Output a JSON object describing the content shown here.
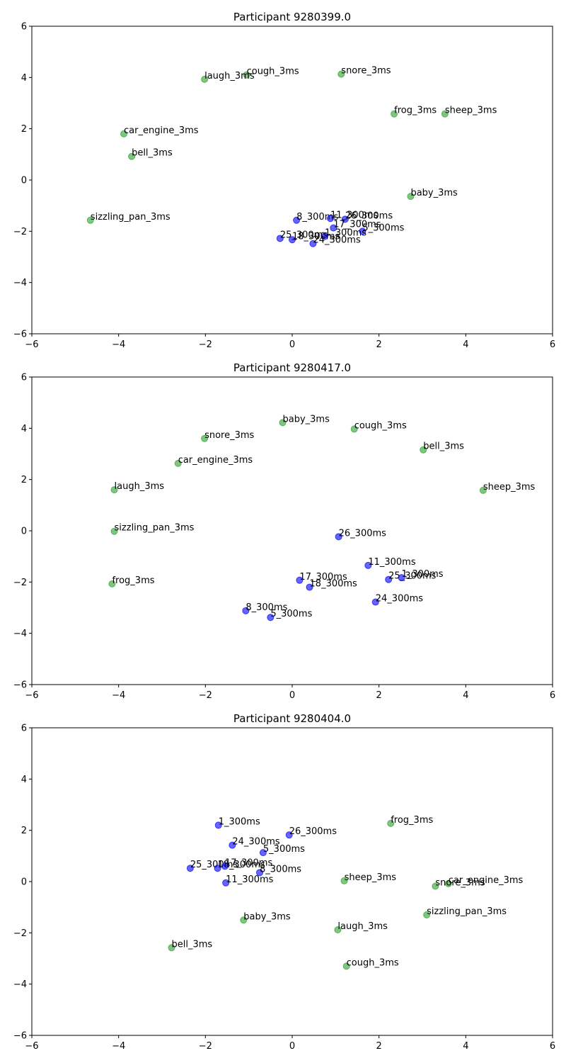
{
  "chart_data": [
    {
      "type": "scatter",
      "title": "Participant 9280399.0",
      "xlim": [
        -6,
        6
      ],
      "ylim": [
        -6,
        6
      ],
      "xticks": [
        "−6",
        "−4",
        "−2",
        "0",
        "2",
        "4",
        "6"
      ],
      "yticks": [
        "−6",
        "−4",
        "−2",
        "0",
        "2",
        "4",
        "6"
      ],
      "grid": false,
      "series": [
        {
          "color": "#2ca02c",
          "points": [
            {
              "label": "cough_3ms",
              "x": -1.05,
              "y": 4.1
            },
            {
              "label": "snore_3ms",
              "x": 1.13,
              "y": 4.13
            },
            {
              "label": "laugh_3ms",
              "x": -2.02,
              "y": 3.93
            },
            {
              "label": "frog_3ms",
              "x": 2.35,
              "y": 2.58
            },
            {
              "label": "sheep_3ms",
              "x": 3.52,
              "y": 2.58
            },
            {
              "label": "car_engine_3ms",
              "x": -3.88,
              "y": 1.8
            },
            {
              "label": "bell_3ms",
              "x": -3.7,
              "y": 0.92
            },
            {
              "label": "baby_3ms",
              "x": 2.73,
              "y": -0.64
            },
            {
              "label": "sizzling_pan_3ms",
              "x": -4.65,
              "y": -1.57
            }
          ]
        },
        {
          "color": "#0000ff",
          "points": [
            {
              "label": "8_300ms",
              "x": 0.1,
              "y": -1.57
            },
            {
              "label": "11_300ms",
              "x": 0.88,
              "y": -1.5
            },
            {
              "label": "26_300ms",
              "x": 1.22,
              "y": -1.53
            },
            {
              "label": "17_300ms",
              "x": 0.95,
              "y": -1.87
            },
            {
              "label": "5_300ms",
              "x": 1.62,
              "y": -2.0
            },
            {
              "label": "25_300ms",
              "x": -0.28,
              "y": -2.28
            },
            {
              "label": "18_300ms",
              "x": 0.0,
              "y": -2.33
            },
            {
              "label": "1_300ms",
              "x": 0.75,
              "y": -2.2
            },
            {
              "label": "24_300ms",
              "x": 0.48,
              "y": -2.48
            }
          ]
        }
      ]
    },
    {
      "type": "scatter",
      "title": "Participant 9280417.0",
      "xlim": [
        -6,
        6
      ],
      "ylim": [
        -6,
        6
      ],
      "xticks": [
        "−6",
        "−4",
        "−2",
        "0",
        "2",
        "4",
        "6"
      ],
      "yticks": [
        "−6",
        "−4",
        "−2",
        "0",
        "2",
        "4",
        "6"
      ],
      "grid": false,
      "series": [
        {
          "color": "#2ca02c",
          "points": [
            {
              "label": "baby_3ms",
              "x": -0.22,
              "y": 4.22
            },
            {
              "label": "cough_3ms",
              "x": 1.43,
              "y": 3.97
            },
            {
              "label": "snore_3ms",
              "x": -2.02,
              "y": 3.6
            },
            {
              "label": "bell_3ms",
              "x": 3.02,
              "y": 3.16
            },
            {
              "label": "car_engine_3ms",
              "x": -2.63,
              "y": 2.63
            },
            {
              "label": "laugh_3ms",
              "x": -4.1,
              "y": 1.6
            },
            {
              "label": "sheep_3ms",
              "x": 4.4,
              "y": 1.58
            },
            {
              "label": "sizzling_pan_3ms",
              "x": -4.1,
              "y": -0.02
            },
            {
              "label": "frog_3ms",
              "x": -4.15,
              "y": -2.07
            }
          ]
        },
        {
          "color": "#0000ff",
          "points": [
            {
              "label": "26_300ms",
              "x": 1.07,
              "y": -0.23
            },
            {
              "label": "11_300ms",
              "x": 1.75,
              "y": -1.35
            },
            {
              "label": "25_300ms",
              "x": 2.22,
              "y": -1.9
            },
            {
              "label": "1_300ms",
              "x": 2.52,
              "y": -1.83
            },
            {
              "label": "17_300ms",
              "x": 0.17,
              "y": -1.93
            },
            {
              "label": "18_300ms",
              "x": 0.4,
              "y": -2.2
            },
            {
              "label": "24_300ms",
              "x": 1.92,
              "y": -2.78
            },
            {
              "label": "8_300ms",
              "x": -1.07,
              "y": -3.12
            },
            {
              "label": "5_300ms",
              "x": -0.5,
              "y": -3.38
            }
          ]
        }
      ]
    },
    {
      "type": "scatter",
      "title": "Participant 9280404.0",
      "xlim": [
        -6,
        6
      ],
      "ylim": [
        -6,
        6
      ],
      "xticks": [
        "−6",
        "−4",
        "−2",
        "0",
        "2",
        "4",
        "6"
      ],
      "yticks": [
        "−6",
        "−4",
        "−2",
        "0",
        "2",
        "4",
        "6"
      ],
      "grid": false,
      "series": [
        {
          "color": "#2ca02c",
          "points": [
            {
              "label": "frog_3ms",
              "x": 2.27,
              "y": 2.27
            },
            {
              "label": "sheep_3ms",
              "x": 1.2,
              "y": 0.03
            },
            {
              "label": "car_engine_3ms",
              "x": 3.6,
              "y": -0.08
            },
            {
              "label": "snore_3ms",
              "x": 3.3,
              "y": -0.18
            },
            {
              "label": "sizzling_pan_3ms",
              "x": 3.1,
              "y": -1.3
            },
            {
              "label": "baby_3ms",
              "x": -1.12,
              "y": -1.5
            },
            {
              "label": "laugh_3ms",
              "x": 1.05,
              "y": -1.88
            },
            {
              "label": "bell_3ms",
              "x": -2.78,
              "y": -2.58
            },
            {
              "label": "cough_3ms",
              "x": 1.25,
              "y": -3.3
            }
          ]
        },
        {
          "color": "#0000ff",
          "points": [
            {
              "label": "1_300ms",
              "x": -1.7,
              "y": 2.2
            },
            {
              "label": "26_300ms",
              "x": -0.07,
              "y": 1.82
            },
            {
              "label": "24_300ms",
              "x": -1.38,
              "y": 1.42
            },
            {
              "label": "5_300ms",
              "x": -0.67,
              "y": 1.13
            },
            {
              "label": "25_300ms",
              "x": -2.35,
              "y": 0.52
            },
            {
              "label": "18_300ms",
              "x": -1.72,
              "y": 0.52
            },
            {
              "label": "17_300ms",
              "x": -1.55,
              "y": 0.6
            },
            {
              "label": "8_300ms",
              "x": -0.75,
              "y": 0.35
            },
            {
              "label": "11_300ms",
              "x": -1.53,
              "y": -0.05
            }
          ]
        }
      ]
    }
  ]
}
